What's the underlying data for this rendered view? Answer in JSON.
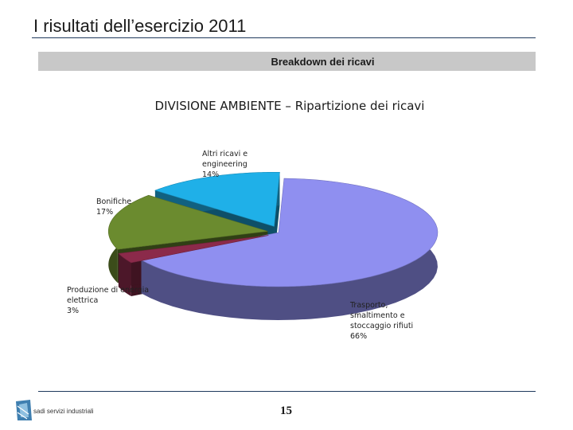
{
  "header": {
    "title": "I risultati dell’esercizio 2011",
    "section": "Breakdown dei ricavi"
  },
  "chart_data": {
    "type": "pie",
    "title": "DIVISIONE AMBIENTE – Ripartizione dei ricavi",
    "slices": [
      {
        "label": "Trasporto, smaltimento e stoccaggio rifiuti",
        "value": 66,
        "display": "Trasporto,\nsmaltimento e\nstoccaggio rifiuti\n66%",
        "color": "#8f8ff0"
      },
      {
        "label": "Produzione di energia elettrica",
        "value": 3,
        "display": "Produzione di energia\nelettrica\n3%",
        "color": "#8b2a4a"
      },
      {
        "label": "Bonifiche",
        "value": 17,
        "display": "Bonifiche\n17%",
        "color": "#6b8b2f"
      },
      {
        "label": "Altri ricavi e engineering",
        "value": 14,
        "display": "Altri ricavi e\nengineering\n14%",
        "color": "#1fb0e8"
      }
    ]
  },
  "footer": {
    "page_number": "15",
    "logo_text": "sadi servizi industriali",
    "logo_icon": "company-logo-icon"
  }
}
